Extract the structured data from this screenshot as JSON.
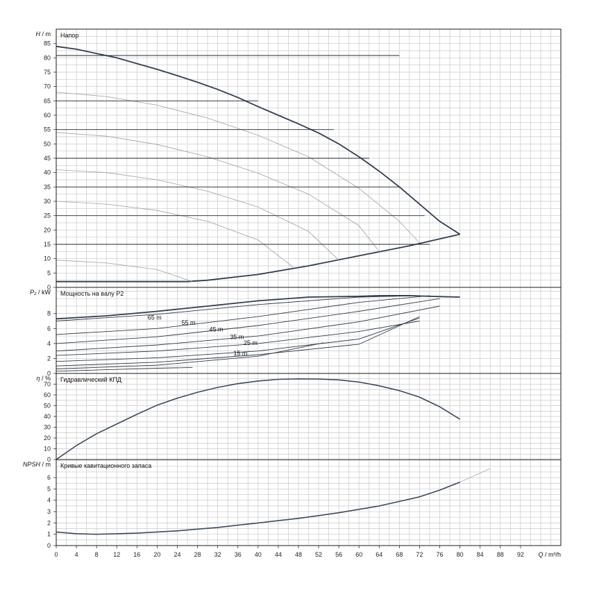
{
  "chart_data": [
    {
      "type": "line",
      "panel": "head",
      "title": "Напор",
      "ylabel_symbol": "H",
      "ylabel_unit": "m",
      "ylim": [
        0,
        90
      ],
      "yticks": [
        0,
        5,
        10,
        15,
        20,
        25,
        30,
        35,
        40,
        45,
        50,
        55,
        60,
        65,
        70,
        75,
        80,
        85
      ],
      "grid": true,
      "series": [
        {
          "role": "max-curve",
          "x": [
            0,
            4,
            8,
            12,
            16,
            20,
            24,
            28,
            32,
            36,
            40,
            44,
            48,
            52,
            56,
            60,
            64,
            68,
            72,
            76,
            80
          ],
          "y": [
            84,
            83,
            81.5,
            80,
            78,
            76,
            73.8,
            71.5,
            69,
            66.2,
            63,
            60,
            57,
            53.8,
            50,
            45.5,
            40.5,
            35,
            29,
            23,
            18.5
          ]
        },
        {
          "role": "min-curve",
          "x": [
            0,
            26,
            30,
            40,
            50,
            60,
            70,
            80
          ],
          "y": [
            2,
            2,
            2.5,
            4.5,
            7.5,
            11,
            14.5,
            18.5
          ]
        },
        {
          "role": "speed-curve",
          "x": [
            0,
            10,
            20,
            30,
            40,
            50,
            60,
            68,
            72
          ],
          "y": [
            68,
            66.5,
            63.5,
            59,
            53,
            45.5,
            34.5,
            23,
            15.5
          ]
        },
        {
          "role": "speed-curve",
          "x": [
            0,
            10,
            20,
            30,
            40,
            50,
            60,
            64
          ],
          "y": [
            54,
            52.7,
            49.8,
            45.5,
            39.8,
            32.5,
            21.5,
            12.5
          ]
        },
        {
          "role": "speed-curve",
          "x": [
            0,
            10,
            20,
            30,
            40,
            50,
            56
          ],
          "y": [
            41,
            40,
            37.5,
            33.5,
            28,
            19.5,
            9.5
          ]
        },
        {
          "role": "speed-curve",
          "x": [
            0,
            10,
            20,
            30,
            40,
            47
          ],
          "y": [
            30,
            29,
            26.8,
            23,
            16.5,
            7
          ]
        },
        {
          "role": "speed-curve",
          "x": [
            0,
            10,
            20,
            27
          ],
          "y": [
            9.5,
            8.5,
            6.2,
            2
          ]
        },
        {
          "role": "operating-line",
          "x": [
            0,
            68
          ],
          "y": [
            80.8,
            80.8
          ]
        },
        {
          "role": "operating-line",
          "x": [
            0,
            40
          ],
          "y": [
            65,
            65
          ]
        },
        {
          "role": "operating-line",
          "x": [
            0,
            55
          ],
          "y": [
            55,
            55
          ]
        },
        {
          "role": "operating-line",
          "x": [
            0,
            62
          ],
          "y": [
            45,
            45
          ]
        },
        {
          "role": "operating-line",
          "x": [
            0,
            68
          ],
          "y": [
            35,
            35
          ]
        },
        {
          "role": "operating-line",
          "x": [
            0,
            73
          ],
          "y": [
            25,
            25
          ]
        },
        {
          "role": "operating-line",
          "x": [
            0,
            74
          ],
          "y": [
            15,
            15
          ]
        }
      ]
    },
    {
      "type": "line",
      "panel": "power",
      "title": "Мощность на валу P2",
      "ylabel_symbol": "P₂",
      "ylabel_unit": "kW",
      "ylim": [
        0,
        11.5
      ],
      "yticks": [
        0,
        2,
        4,
        6,
        8
      ],
      "grid": true,
      "curve_labels": [
        {
          "text": "65 m",
          "x": 19.5,
          "y": 7.2
        },
        {
          "text": "55 m",
          "x": 26.2,
          "y": 6.5
        },
        {
          "text": "45 m",
          "x": 31.7,
          "y": 5.6
        },
        {
          "text": "35 m",
          "x": 35.8,
          "y": 4.6
        },
        {
          "text": "25 m",
          "x": 38.5,
          "y": 3.8
        },
        {
          "text": "15 m",
          "x": 36.5,
          "y": 2.4
        }
      ],
      "series": [
        {
          "role": "max-curve",
          "x": [
            0,
            10,
            20,
            30,
            40,
            50,
            60,
            64,
            70,
            74,
            80
          ],
          "y": [
            7.3,
            7.7,
            8.3,
            9.0,
            9.7,
            10.2,
            10.3,
            10.4,
            10.4,
            10.3,
            10.2
          ]
        },
        {
          "role": "speed-curve",
          "x": [
            0,
            20,
            40,
            60,
            72
          ],
          "y": [
            7.0,
            7.9,
            9.2,
            10.2,
            10.4
          ]
        },
        {
          "role": "speed-curve",
          "x": [
            0,
            20,
            40,
            60,
            74
          ],
          "y": [
            5.2,
            6.0,
            7.6,
            9.5,
            10.4
          ]
        },
        {
          "role": "speed-curve",
          "x": [
            0,
            20,
            40,
            60,
            76
          ],
          "y": [
            4.0,
            4.9,
            6.4,
            8.3,
            10.0
          ]
        },
        {
          "role": "speed-curve",
          "x": [
            0,
            20,
            40,
            60,
            76
          ],
          "y": [
            3.0,
            3.8,
            5.0,
            6.9,
            9.0
          ]
        },
        {
          "role": "speed-curve",
          "x": [
            0,
            20,
            40,
            60,
            72
          ],
          "y": [
            2.4,
            3.0,
            4.0,
            5.6,
            7.0
          ]
        },
        {
          "role": "speed-curve",
          "x": [
            0,
            20,
            40,
            60,
            72
          ],
          "y": [
            1.6,
            2.1,
            3.0,
            4.6,
            7.4
          ]
        },
        {
          "role": "speed-curve",
          "x": [
            0,
            20,
            40,
            60,
            72
          ],
          "y": [
            1.0,
            1.5,
            2.5,
            3.9,
            7.6
          ]
        },
        {
          "role": "speed-curve",
          "x": [
            0,
            20,
            40,
            53
          ],
          "y": [
            0.6,
            1.1,
            2.3,
            4.1
          ]
        },
        {
          "role": "speed-curve",
          "x": [
            0,
            10,
            20,
            27
          ],
          "y": [
            0.3,
            0.5,
            0.7,
            0.8
          ]
        }
      ]
    },
    {
      "type": "line",
      "panel": "efficiency",
      "title": "Гидравлический КПД",
      "ylabel_symbol": "η",
      "ylabel_unit": "%",
      "ylim": [
        0,
        80
      ],
      "yticks": [
        0,
        10,
        20,
        30,
        40,
        50,
        60,
        70
      ],
      "grid": true,
      "series": [
        {
          "role": "efficiency",
          "x": [
            0,
            4,
            8,
            12,
            16,
            20,
            24,
            28,
            32,
            36,
            40,
            44,
            48,
            52,
            56,
            60,
            64,
            68,
            72,
            76,
            80
          ],
          "y": [
            0,
            13,
            24,
            33,
            42,
            50.5,
            57,
            62.5,
            67,
            70.5,
            73,
            74.5,
            75,
            74.8,
            74,
            72,
            68.5,
            64,
            58,
            49,
            37.5
          ]
        }
      ]
    },
    {
      "type": "line",
      "panel": "npsh",
      "title": "Кривые кавитационного запаса",
      "ylabel_symbol": "NPSH",
      "ylabel_unit": "m",
      "ylim": [
        0,
        7.6
      ],
      "yticks": [
        0,
        1,
        2,
        3,
        4,
        5,
        6
      ],
      "grid": true,
      "series": [
        {
          "role": "npsh",
          "x": [
            0,
            4,
            8,
            12,
            16,
            20,
            24,
            28,
            32,
            36,
            40,
            44,
            48,
            52,
            56,
            60,
            64,
            68,
            72,
            76,
            80
          ],
          "y": [
            1.2,
            1.05,
            1.0,
            1.05,
            1.1,
            1.2,
            1.3,
            1.45,
            1.6,
            1.8,
            2.0,
            2.2,
            2.4,
            2.65,
            2.9,
            3.2,
            3.5,
            3.9,
            4.3,
            4.9,
            5.6
          ]
        },
        {
          "role": "npsh-extension",
          "x": [
            80,
            83,
            86
          ],
          "y": [
            5.6,
            6.2,
            6.8
          ]
        }
      ]
    }
  ],
  "x_axis": {
    "symbol": "Q",
    "unit": "m³/h",
    "xlim": [
      0,
      100
    ],
    "ticks": [
      0,
      4,
      8,
      12,
      16,
      20,
      24,
      28,
      32,
      36,
      40,
      44,
      48,
      52,
      56,
      60,
      64,
      68,
      72,
      76,
      80,
      84,
      88,
      92
    ]
  }
}
